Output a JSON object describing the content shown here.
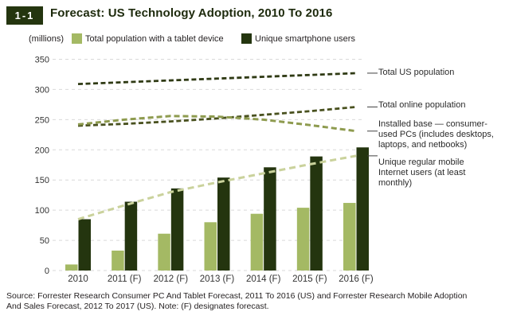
{
  "header": {
    "badge": "1-1",
    "title": "Forecast: US Technology Adoption, 2010 To 2016"
  },
  "legend": {
    "units": "(millions)",
    "items": [
      {
        "label": "Total population with a tablet device",
        "color": "#a4b964"
      },
      {
        "label": "Unique smartphone users",
        "color": "#24350f"
      }
    ]
  },
  "chart_data": {
    "type": "bar",
    "title": "Forecast: US Technology Adoption, 2010 To 2016",
    "ylabel": "(millions)",
    "ylim": [
      0,
      350
    ],
    "ytick_step": 50,
    "grid": "horizontal-dashed",
    "categories": [
      "2010",
      "2011 (F)",
      "2012 (F)",
      "2013 (F)",
      "2014 (F)",
      "2015 (F)",
      "2016 (F)"
    ],
    "bar_series": [
      {
        "name": "Total population with a tablet device",
        "color": "#a4b964",
        "values": [
          10,
          33,
          61,
          80,
          94,
          104,
          112
        ]
      },
      {
        "name": "Unique smartphone users",
        "color": "#24350f",
        "values": [
          85,
          114,
          136,
          154,
          171,
          189,
          204
        ]
      }
    ],
    "line_series": [
      {
        "name": "Total US population",
        "color": "#2f3a14",
        "values": [
          309,
          312,
          315,
          318,
          321,
          324,
          327
        ],
        "label_lines": [
          "Total US population"
        ]
      },
      {
        "name": "Total online population",
        "color": "#49511f",
        "values": [
          240,
          243,
          247,
          252,
          258,
          264,
          271
        ],
        "label_lines": [
          "Total online population"
        ]
      },
      {
        "name": "Installed base — consumer-used PCs",
        "color": "#8e9b4f",
        "values": [
          242,
          250,
          256,
          255,
          250,
          241,
          231
        ],
        "label_lines": [
          "Installed base — consumer-",
          "used PCs (includes desktops,",
          "laptops, and netbooks)"
        ]
      },
      {
        "name": "Unique regular mobile Internet users",
        "color": "#cad29c",
        "values": [
          85,
          108,
          130,
          146,
          161,
          176,
          190
        ],
        "label_lines": [
          "Unique regular mobile",
          "Internet users (at least",
          "monthly)"
        ]
      }
    ]
  },
  "source_note": {
    "lines": [
      "Source: Forrester Research Consumer PC And Tablet Forecast, 2011 To 2016 (US) and Forrester Research Mobile Adoption",
      "And Sales Forecast, 2012 To 2017 (US). Note: (F) designates forecast."
    ]
  },
  "colors": {
    "accent_dark_green": "#24350f",
    "accent_light_green": "#a4b964",
    "gridline": "#d9d9d9",
    "text": "#231f20"
  }
}
